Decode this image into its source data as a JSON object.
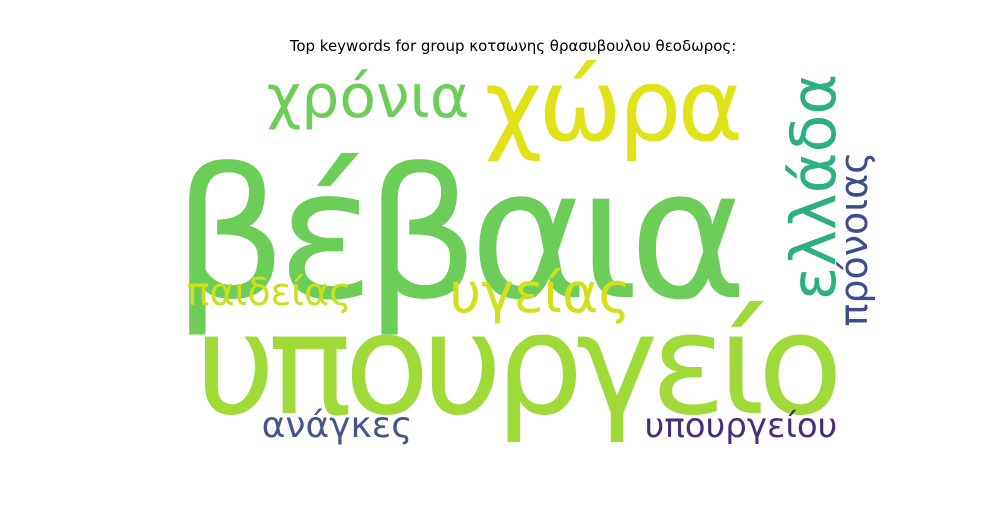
{
  "chart_data": {
    "type": "wordcloud",
    "title": "Top keywords for group κοτσωνης θρασυβουλου θεοδωρος:",
    "words": [
      {
        "text": "βέβαια",
        "color": "#6ccd59"
      },
      {
        "text": "υπουργείο",
        "color": "#a0da39"
      },
      {
        "text": "χώρα",
        "color": "#dfe318"
      },
      {
        "text": "χρόνια",
        "color": "#6ccd59"
      },
      {
        "text": "ελλάδα",
        "color": "#2cb17e"
      },
      {
        "text": "υγείας",
        "color": "#d0e11c"
      },
      {
        "text": "πρόνοιας",
        "color": "#3e4c8a"
      },
      {
        "text": "παιδείας",
        "color": "#c8e020"
      },
      {
        "text": "ανάγκες",
        "color": "#46558c"
      },
      {
        "text": "υπουργείου",
        "color": "#472d7b"
      }
    ]
  }
}
